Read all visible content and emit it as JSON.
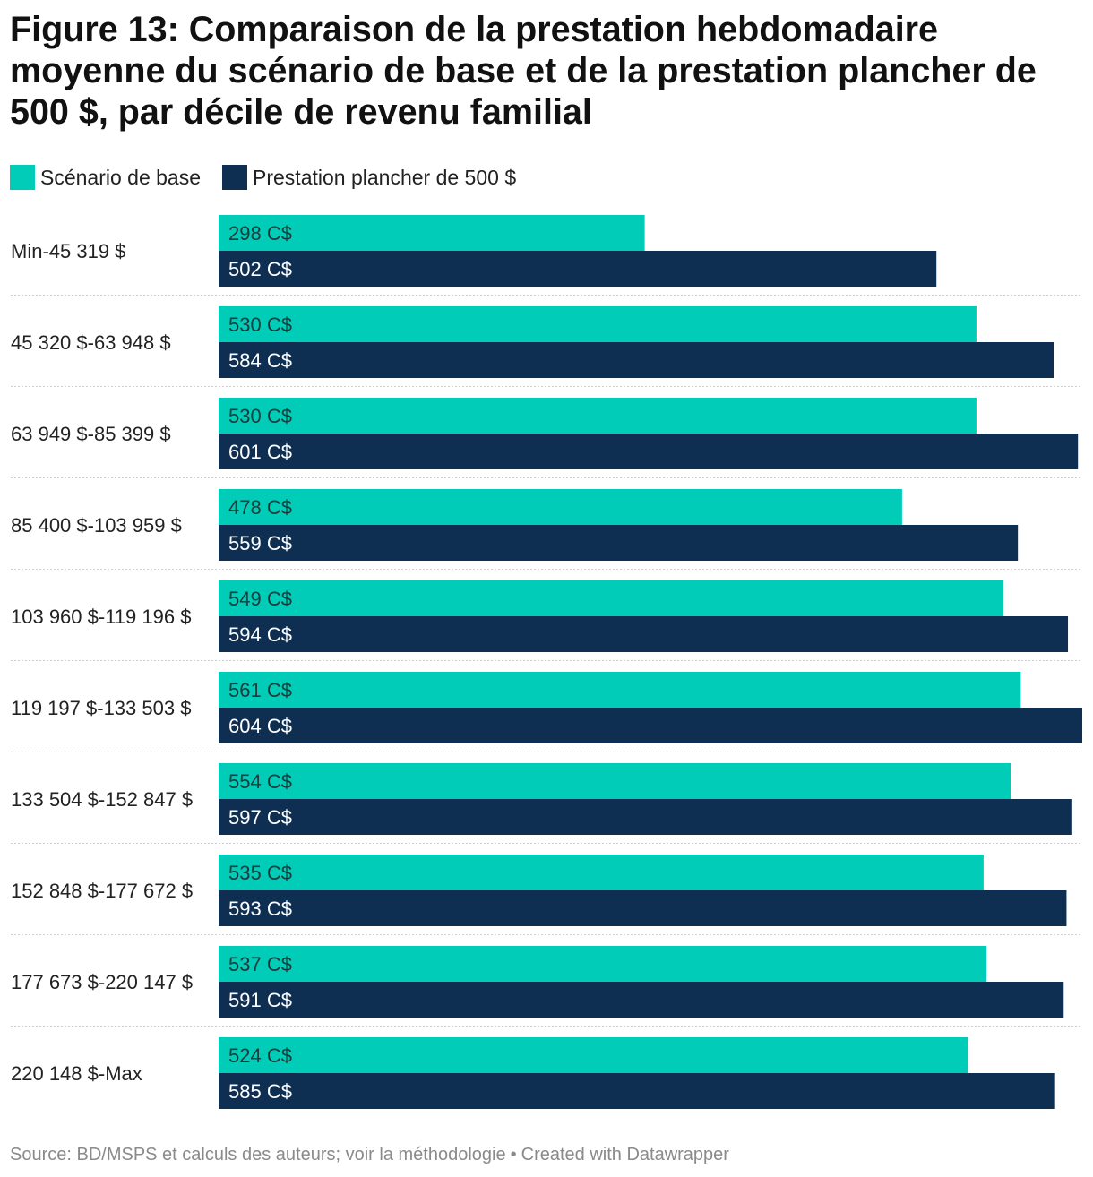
{
  "title": "Figure 13: Comparaison de la prestation hebdomadaire moyenne du scénario de base et de la prestation plancher de 500 $, par décile de revenu familial",
  "legend": [
    {
      "label": "Scénario de base",
      "color": "#00CCB8"
    },
    {
      "label": "Prestation plancher de 500 $",
      "color": "#0F2F52"
    }
  ],
  "chart_data": {
    "type": "bar",
    "orientation": "horizontal",
    "grid": false,
    "legend_position": "top-left",
    "value_suffix": " C$",
    "xlim": [
      0,
      604
    ],
    "categories": [
      "Min-45 319 $",
      "45 320 $-63 948 $",
      "63 949 $-85 399 $",
      "85 400 $-103 959 $",
      "103 960 $-119 196 $",
      "119 197 $-133 503 $",
      "133 504 $-152 847 $",
      "152 848 $-177 672 $",
      "177 673 $-220 147 $",
      "220 148 $-Max"
    ],
    "series": [
      {
        "name": "Scénario de base",
        "color": "#00CCB8",
        "label_color": "#1d3a3a",
        "values": [
          298,
          530,
          530,
          478,
          549,
          561,
          554,
          535,
          537,
          524
        ]
      },
      {
        "name": "Prestation plancher de 500 $",
        "color": "#0F2F52",
        "label_color": "#ffffff",
        "values": [
          502,
          584,
          601,
          559,
          594,
          604,
          597,
          593,
          591,
          585
        ]
      }
    ]
  },
  "source": {
    "text": "Source: BD/MSPS et calculs des auteurs; voir la méthodologie",
    "separator": "•",
    "credit": "Created with Datawrapper"
  }
}
